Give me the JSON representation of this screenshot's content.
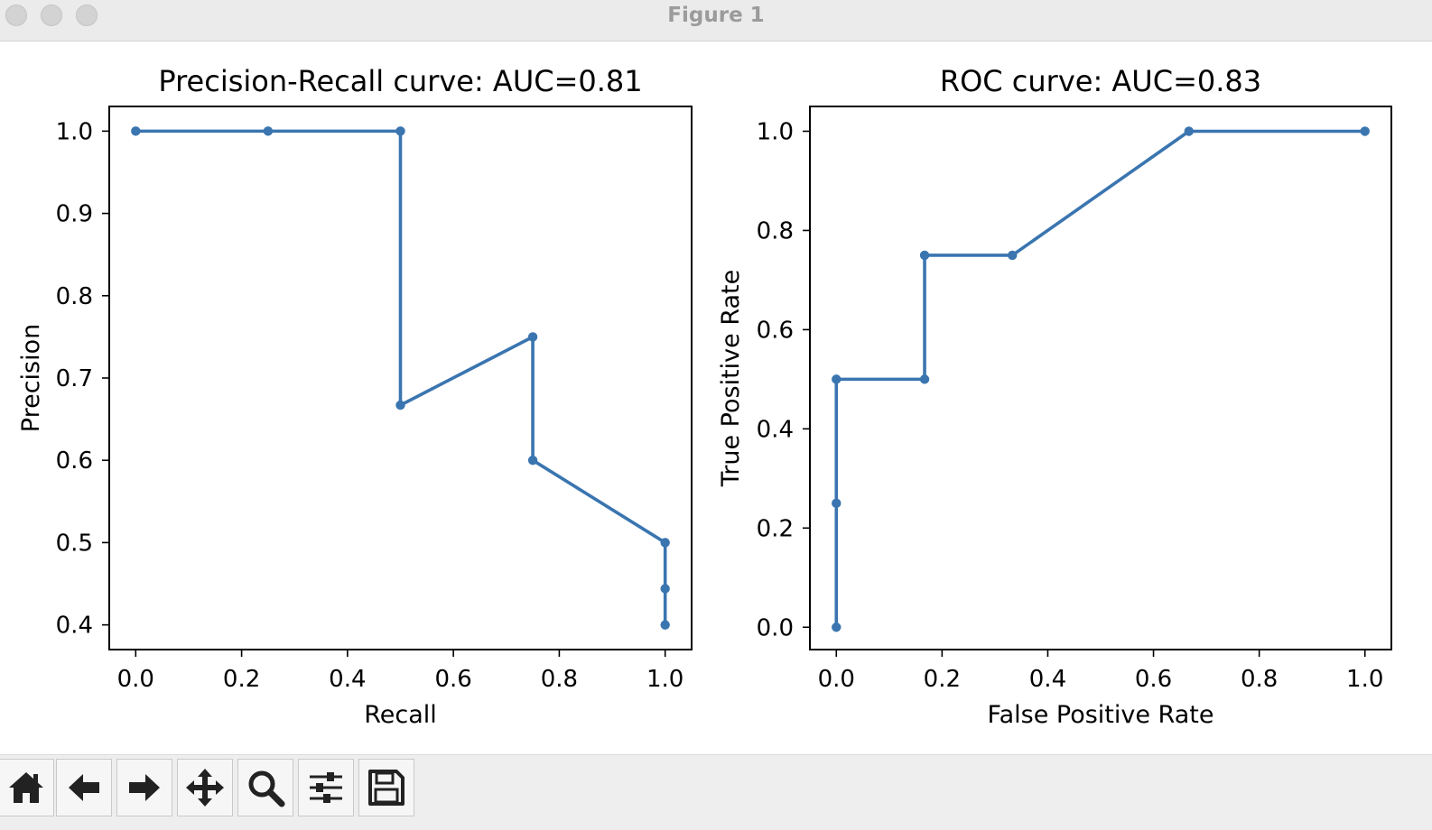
{
  "window": {
    "title": "Figure 1"
  },
  "toolbar": {
    "buttons": [
      {
        "name": "home-button",
        "icon": "home-icon"
      },
      {
        "name": "back-button",
        "icon": "arrow-left-icon"
      },
      {
        "name": "forward-button",
        "icon": "arrow-right-icon"
      },
      {
        "name": "pan-button",
        "icon": "move-icon"
      },
      {
        "name": "zoom-button",
        "icon": "magnifier-icon"
      },
      {
        "name": "configure-subplots-button",
        "icon": "sliders-icon"
      },
      {
        "name": "save-button",
        "icon": "floppy-disk-icon"
      }
    ]
  },
  "chart_data": [
    {
      "type": "line",
      "title": "Precision-Recall curve: AUC=0.81",
      "xlabel": "Recall",
      "ylabel": "Precision",
      "xlim": [
        -0.05,
        1.05
      ],
      "ylim": [
        0.37,
        1.03
      ],
      "xticks": [
        0.0,
        0.2,
        0.4,
        0.6,
        0.8,
        1.0
      ],
      "xtick_labels": [
        "0.0",
        "0.2",
        "0.4",
        "0.6",
        "0.8",
        "1.0"
      ],
      "yticks": [
        0.4,
        0.5,
        0.6,
        0.7,
        0.8,
        0.9,
        1.0
      ],
      "ytick_labels": [
        "0.4",
        "0.5",
        "0.6",
        "0.7",
        "0.8",
        "0.9",
        "1.0"
      ],
      "grid": false,
      "color": "#3a75b0",
      "markers": true,
      "series": [
        {
          "x": [
            0.0,
            0.25,
            0.5,
            0.5,
            0.75,
            0.75,
            1.0,
            1.0,
            1.0
          ],
          "y": [
            1.0,
            1.0,
            1.0,
            0.667,
            0.75,
            0.6,
            0.5,
            0.444,
            0.4
          ]
        }
      ]
    },
    {
      "type": "line",
      "title": "ROC curve: AUC=0.83",
      "xlabel": "False Positive Rate",
      "ylabel": "True Positive Rate",
      "xlim": [
        -0.05,
        1.05
      ],
      "ylim": [
        -0.045,
        1.05
      ],
      "xticks": [
        0.0,
        0.2,
        0.4,
        0.6,
        0.8,
        1.0
      ],
      "xtick_labels": [
        "0.0",
        "0.2",
        "0.4",
        "0.6",
        "0.8",
        "1.0"
      ],
      "yticks": [
        0.0,
        0.2,
        0.4,
        0.6,
        0.8,
        1.0
      ],
      "ytick_labels": [
        "0.0",
        "0.2",
        "0.4",
        "0.6",
        "0.8",
        "1.0"
      ],
      "grid": false,
      "color": "#3a75b0",
      "markers": true,
      "series": [
        {
          "x": [
            0.0,
            0.0,
            0.0,
            0.167,
            0.167,
            0.333,
            0.667,
            1.0
          ],
          "y": [
            0.0,
            0.25,
            0.5,
            0.5,
            0.75,
            0.75,
            1.0,
            1.0
          ]
        }
      ]
    }
  ]
}
